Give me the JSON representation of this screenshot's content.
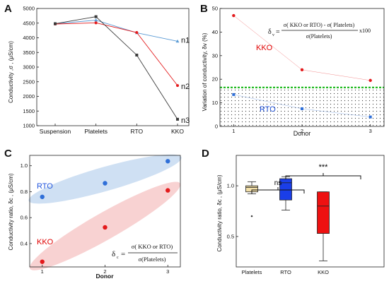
{
  "colors": {
    "black": "#3a3a3a",
    "red": "#e31a1c",
    "blue": "#2f6fd8",
    "lightblue": "#5b9bd5",
    "kko_text": "#e00000",
    "rto_text": "#2255dd",
    "green": "#22bb22",
    "box_ref": "#f2dfa8",
    "box_rto": "#1a3ee8",
    "box_kko": "#ee1111",
    "blue_band": "#cfe0f3",
    "red_band": "#f8d2d2"
  },
  "panel_a": {
    "label": "A",
    "ylabel": "Conductivity ,σ , (μS/cm)",
    "series_labels": [
      "n1",
      "n2",
      "n3"
    ]
  },
  "panel_b": {
    "label": "B",
    "ylabel": "Variation of conductivity, δv (%)",
    "xlabel": "Donor",
    "kko_label": "KKO",
    "rto_label": "RTO",
    "formula_lhs": "δ",
    "formula_lhs_sub": "v",
    "formula_num": "σ( KKO or RTO) - σ( Platelets)",
    "formula_den": "σ(Platelets)",
    "formula_tail": "x100"
  },
  "panel_c": {
    "label": "C",
    "ylabel": "Conductivity ratio, δc , (μS/cm)",
    "xlabel": "Donor",
    "kko_label": "KKO",
    "rto_label": "RTO",
    "formula_lhs": "δ",
    "formula_lhs_sub": "c",
    "formula_num": "σ( KKO or RTO)",
    "formula_den": "σ(Platelets)"
  },
  "panel_d": {
    "label": "D",
    "ylabel": "Conductivity ratio, δc , (μS/cm)",
    "sig_1": "ns",
    "sig_2": "***"
  },
  "chart_data": [
    {
      "type": "line",
      "panel": "A",
      "categories": [
        "Suspension",
        "Platelets",
        "RTO",
        "KKO"
      ],
      "ylim": [
        1000,
        5000
      ],
      "yticks": [
        1000,
        1500,
        2000,
        2500,
        3000,
        3500,
        4000,
        4500,
        5000
      ],
      "series": [
        {
          "name": "n1",
          "values": [
            4480,
            4600,
            4170,
            3880
          ]
        },
        {
          "name": "n2",
          "values": [
            4470,
            4510,
            4180,
            2370
          ]
        },
        {
          "name": "n3",
          "values": [
            4480,
            4720,
            3410,
            1220
          ]
        }
      ]
    },
    {
      "type": "scatter",
      "panel": "B",
      "x": [
        1,
        2,
        3
      ],
      "xlim": [
        0.8,
        3.2
      ],
      "ylim": [
        0,
        50
      ],
      "yticks": [
        0,
        10,
        20,
        30,
        40,
        50
      ],
      "xticks": [
        1,
        2,
        3
      ],
      "threshold": 16.5,
      "series": [
        {
          "name": "KKO",
          "values": [
            47,
            24,
            19.5
          ]
        },
        {
          "name": "RTO",
          "values": [
            13.5,
            7.5,
            4
          ]
        }
      ]
    },
    {
      "type": "scatter",
      "panel": "C",
      "x": [
        1,
        2,
        3
      ],
      "xlim": [
        0.8,
        3.2
      ],
      "ylim": [
        0.22,
        1.08
      ],
      "yticks": [
        0.4,
        0.6,
        0.8,
        1.0
      ],
      "xticks": [
        1,
        2,
        3
      ],
      "series": [
        {
          "name": "RTO",
          "values": [
            0.76,
            0.865,
            1.035
          ]
        },
        {
          "name": "KKO",
          "values": [
            0.26,
            0.525,
            0.81
          ]
        }
      ]
    },
    {
      "type": "box",
      "panel": "D",
      "categories": [
        "Platelets",
        "RTO",
        "KKO"
      ],
      "ylim": [
        0.2,
        1.3
      ],
      "yticks": [
        0.5,
        1.0
      ],
      "boxes": [
        {
          "name": "Platelets",
          "whisker_low": 0.92,
          "q1": 0.94,
          "median": 0.985,
          "q3": 1.0,
          "whisker_high": 1.04,
          "outlier": 0.7
        },
        {
          "name": "RTO",
          "whisker_low": 0.76,
          "q1": 0.86,
          "median": 1.03,
          "q3": 1.07,
          "whisker_high": 1.09
        },
        {
          "name": "KKO",
          "whisker_low": 0.26,
          "q1": 0.53,
          "median": 0.8,
          "q3": 0.94,
          "whisker_high": 0.94
        }
      ]
    }
  ]
}
